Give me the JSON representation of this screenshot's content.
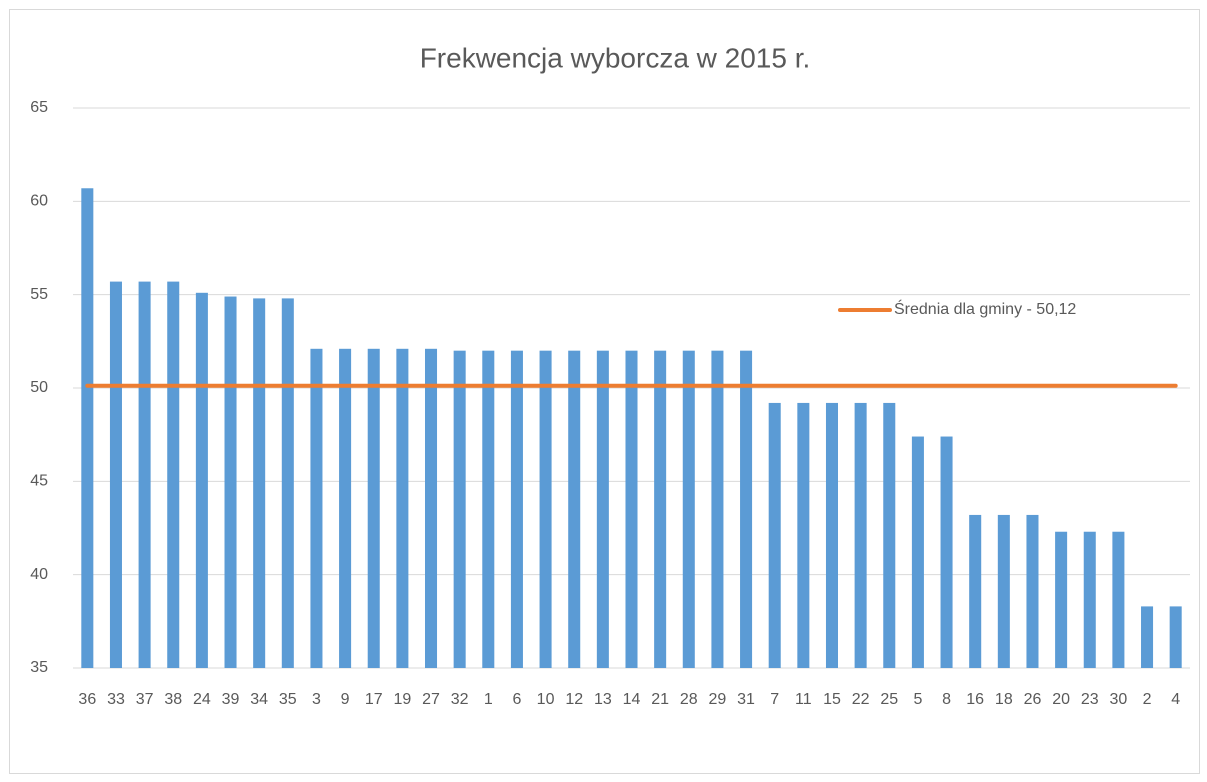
{
  "chart_data": {
    "type": "bar",
    "title": "Frekwencja wyborcza w 2015 r.",
    "categories": [
      "36",
      "33",
      "37",
      "38",
      "24",
      "39",
      "34",
      "35",
      "3",
      "9",
      "17",
      "19",
      "27",
      "32",
      "1",
      "6",
      "10",
      "12",
      "13",
      "14",
      "21",
      "28",
      "29",
      "31",
      "7",
      "11",
      "15",
      "22",
      "25",
      "5",
      "8",
      "16",
      "18",
      "26",
      "20",
      "23",
      "30",
      "2",
      "4"
    ],
    "series": [
      {
        "type": "bar",
        "color": "#5b9bd5",
        "values": [
          60.7,
          55.7,
          55.7,
          55.7,
          55.1,
          54.9,
          54.8,
          54.8,
          52.1,
          52.1,
          52.1,
          52.1,
          52.1,
          52.0,
          52.0,
          52.0,
          52.0,
          52.0,
          52.0,
          52.0,
          52.0,
          52.0,
          52.0,
          52.0,
          49.2,
          49.2,
          49.2,
          49.2,
          49.2,
          47.4,
          47.4,
          43.2,
          43.2,
          43.2,
          42.3,
          42.3,
          42.3,
          38.3,
          38.3
        ]
      },
      {
        "type": "line",
        "name": "Średnia dla gminy - 50,12",
        "color": "#ed7d31",
        "values": [
          50.12,
          50.12,
          50.12,
          50.12,
          50.12,
          50.12,
          50.12,
          50.12,
          50.12,
          50.12,
          50.12,
          50.12,
          50.12,
          50.12,
          50.12,
          50.12,
          50.12,
          50.12,
          50.12,
          50.12,
          50.12,
          50.12,
          50.12,
          50.12,
          50.12,
          50.12,
          50.12,
          50.12,
          50.12,
          50.12,
          50.12,
          50.12,
          50.12,
          50.12,
          50.12,
          50.12,
          50.12,
          50.12,
          50.12
        ]
      }
    ],
    "ylim": [
      35,
      65
    ],
    "yticks": [
      35,
      40,
      45,
      50,
      55,
      60,
      65
    ],
    "grid": true,
    "legend": "top-right"
  }
}
